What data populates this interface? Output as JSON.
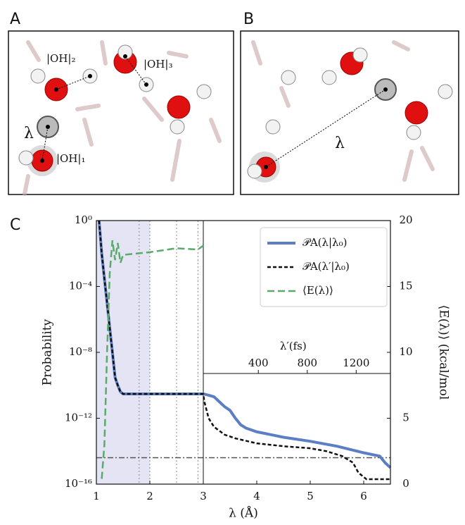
{
  "figure": {
    "panel_a": {
      "label": "A",
      "oh2": "|OH|₂",
      "oh3": "|OH|₃",
      "lambda": "λ",
      "oh1": "|OH|₁"
    },
    "panel_b": {
      "label": "B",
      "lambda": "λ"
    },
    "panel_c": {
      "label": "C"
    }
  },
  "chart_data": {
    "type": "line",
    "xlabel": "λ (Å)",
    "ylabel": "Probability",
    "y2label": "⟨E(λ)⟩ (kcal/mol",
    "xlim": [
      1,
      6.5
    ],
    "xticks": [
      1,
      2,
      3,
      4,
      5,
      6
    ],
    "ylim": [
      1e-16,
      1
    ],
    "log_y": true,
    "yticks": [
      {
        "value": 1,
        "label": "10⁰"
      },
      {
        "value": 0.0001,
        "label": "10⁻⁴"
      },
      {
        "value": 1e-08,
        "label": "10⁻⁸"
      },
      {
        "value": 1e-12,
        "label": "10⁻¹²"
      },
      {
        "value": 1e-16,
        "label": "10⁻¹⁶"
      }
    ],
    "y2lim": [
      0,
      20
    ],
    "y2ticks": [
      0,
      5,
      10,
      15,
      20
    ],
    "x2label": "λ′(fs)",
    "x2lim": [
      -50,
      1480
    ],
    "x2ticks": [
      400,
      800,
      1200
    ],
    "inset_start": 3,
    "shade": [
      1,
      2
    ],
    "vlines": [
      1.8,
      2,
      2.5,
      2.9
    ],
    "hline": 4e-15,
    "legend": "upper right",
    "series": [
      {
        "name": "𝒫A(λ|λ₀)",
        "color": "#5b7fc2",
        "style": "solid",
        "x": [
          1.05,
          1.1,
          1.15,
          1.2,
          1.25,
          1.3,
          1.35,
          1.4,
          1.45,
          1.5,
          1.6,
          2,
          2.5,
          3,
          3.1,
          3.2,
          3.3,
          3.4,
          3.5,
          3.6,
          3.7,
          3.8,
          4,
          4.5,
          5,
          5.5,
          6,
          6.3,
          6.4,
          6.5
        ],
        "values": [
          1,
          0.01,
          0.0003,
          1e-05,
          3e-07,
          1e-08,
          3e-10,
          1e-10,
          4e-11,
          3e-11,
          3e-11,
          3e-11,
          3e-11,
          3e-11,
          2.5e-11,
          2e-11,
          1e-11,
          5e-12,
          3e-12,
          1e-12,
          4e-13,
          2.5e-13,
          1.5e-13,
          7e-14,
          4e-14,
          2e-14,
          8e-15,
          5e-15,
          2e-15,
          1e-15
        ]
      },
      {
        "name": "𝒫A(λ′|λ₀)",
        "color": "#111111",
        "style": "dashed",
        "x": [
          1.05,
          1.1,
          1.15,
          1.2,
          1.25,
          1.3,
          1.35,
          1.4,
          1.45,
          1.5,
          1.6,
          2,
          2.5,
          3,
          3.02,
          3.1,
          3.2,
          3.4,
          3.6,
          4,
          4.5,
          5,
          5.3,
          5.6,
          5.8,
          5.9,
          6.05,
          6.5
        ],
        "values": [
          1,
          0.01,
          0.0003,
          1e-05,
          3e-07,
          1e-08,
          3e-10,
          1e-10,
          4e-11,
          3e-11,
          3e-11,
          3e-11,
          3e-11,
          3e-11,
          1e-11,
          1e-12,
          3e-13,
          1e-13,
          6e-14,
          3e-14,
          2e-14,
          1.5e-14,
          1e-14,
          5e-15,
          2e-15,
          5e-16,
          2e-16,
          2e-16
        ]
      },
      {
        "name": "⟨E(λ)⟩",
        "color": "#5aaa6a",
        "style": "longdash",
        "axis": "y2",
        "x": [
          1.1,
          1.15,
          1.2,
          1.25,
          1.3,
          1.35,
          1.4,
          1.45,
          1.5,
          2,
          2.5,
          2.9,
          3
        ],
        "values": [
          0.4,
          3,
          10,
          16,
          18.5,
          17,
          18.3,
          16.8,
          17.4,
          17.6,
          17.9,
          17.8,
          18.1
        ]
      }
    ]
  }
}
